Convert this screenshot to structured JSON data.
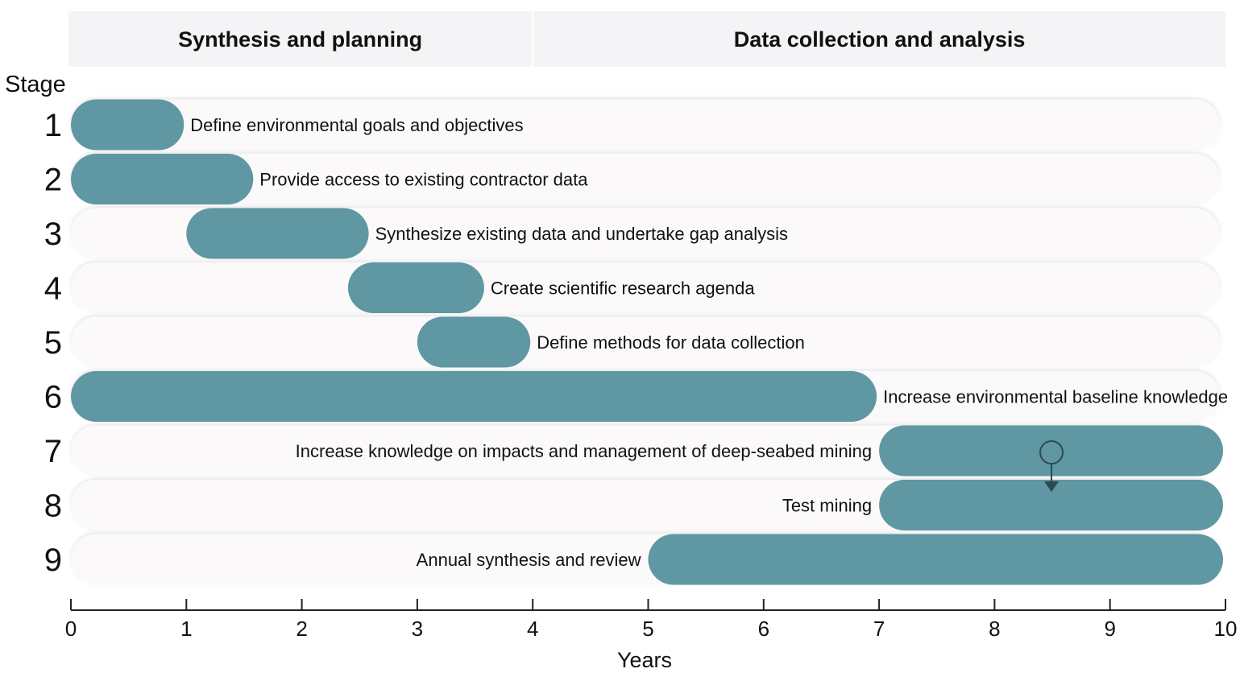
{
  "chart_data": {
    "type": "gantt",
    "phases": [
      {
        "name": "Synthesis and planning",
        "start": 0,
        "end": 4
      },
      {
        "name": "Data collection and analysis",
        "start": 4,
        "end": 10
      }
    ],
    "stage_heading": "Stage",
    "stages": [
      {
        "stage": "1",
        "label": "Define environmental goals and objectives",
        "start": 0,
        "end": 1,
        "label_side": "right"
      },
      {
        "stage": "2",
        "label": "Provide access to existing contractor data",
        "start": 0,
        "end": 1.6,
        "label_side": "right"
      },
      {
        "stage": "3",
        "label": "Synthesize existing data and undertake gap analysis",
        "start": 1,
        "end": 2.6,
        "label_side": "right"
      },
      {
        "stage": "4",
        "label": "Create scientific research agenda",
        "start": 2.4,
        "end": 3.6,
        "label_side": "right"
      },
      {
        "stage": "5",
        "label": "Define methods for data collection",
        "start": 3,
        "end": 4,
        "label_side": "right"
      },
      {
        "stage": "6",
        "label": "Increase environmental baseline knowledge",
        "start": 0,
        "end": 7,
        "label_side": "right"
      },
      {
        "stage": "7",
        "label": "Increase knowledge on impacts and management of deep-seabed mining",
        "start": 7,
        "end": 10,
        "label_side": "left"
      },
      {
        "stage": "8",
        "label": "Test mining",
        "start": 7,
        "end": 10,
        "label_side": "left"
      },
      {
        "stage": "9",
        "label": "Annual synthesis and review",
        "start": 5,
        "end": 10,
        "label_side": "left"
      }
    ],
    "dependency": {
      "from_stage": "7",
      "to_stage": "8",
      "at": 8.5
    },
    "xlabel": "Years",
    "xlim": [
      0,
      10
    ],
    "xticks": [
      0,
      1,
      2,
      3,
      4,
      5,
      6,
      7,
      8,
      9,
      10
    ],
    "colors": {
      "bar": "#5f97a2",
      "track": "#fcf9fb",
      "phase_band": "#f4f3f5",
      "arrow": "#2e4a50",
      "text": "#111111"
    }
  }
}
